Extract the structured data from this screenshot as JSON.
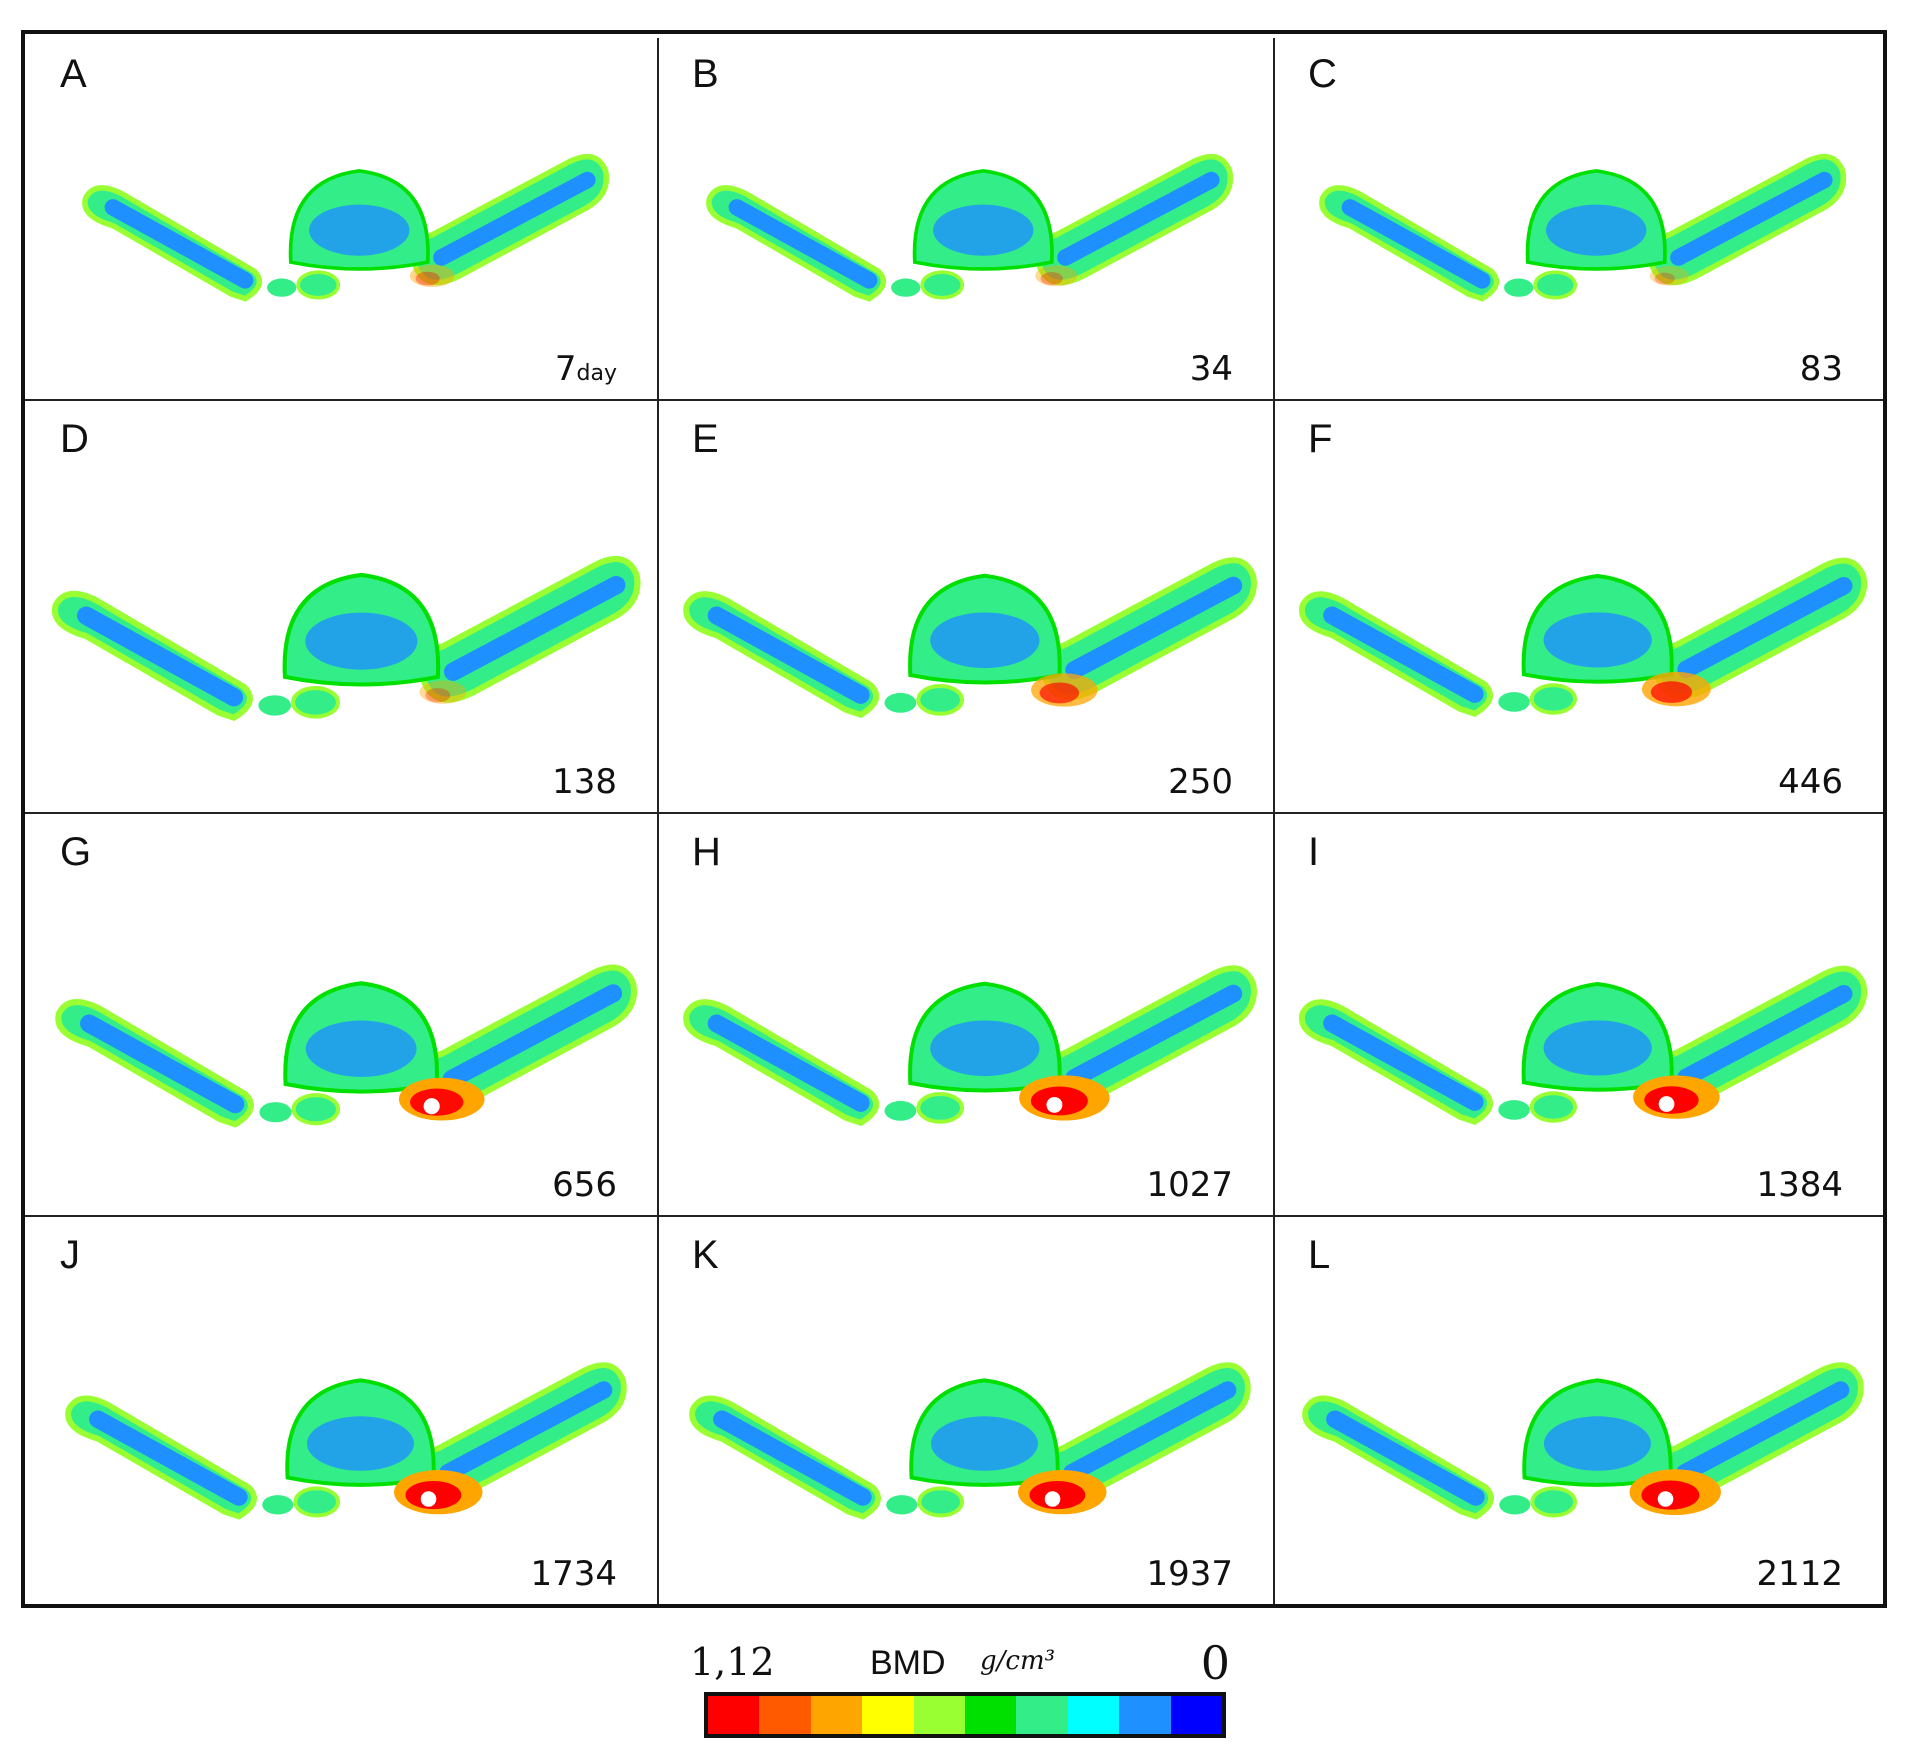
{
  "panels": [
    {
      "letter": "A",
      "day": "7",
      "unit": "day"
    },
    {
      "letter": "B",
      "day": "34",
      "unit": ""
    },
    {
      "letter": "C",
      "day": "83",
      "unit": ""
    },
    {
      "letter": "D",
      "day": "138",
      "unit": ""
    },
    {
      "letter": "E",
      "day": "250",
      "unit": ""
    },
    {
      "letter": "F",
      "day": "446",
      "unit": ""
    },
    {
      "letter": "G",
      "day": "656",
      "unit": ""
    },
    {
      "letter": "H",
      "day": "1027",
      "unit": ""
    },
    {
      "letter": "I",
      "day": "1384",
      "unit": ""
    },
    {
      "letter": "J",
      "day": "1734",
      "unit": ""
    },
    {
      "letter": "K",
      "day": "1937",
      "unit": ""
    },
    {
      "letter": "L",
      "day": "2112",
      "unit": ""
    }
  ],
  "hotspot_level": [
    0.15,
    0.1,
    0.05,
    0.1,
    0.45,
    0.5,
    0.75,
    0.85,
    0.8,
    0.85,
    0.85,
    0.9
  ],
  "colorbar": {
    "max_label": "1,12",
    "title": "BMD",
    "unit": "g/cm³",
    "min_label": "0",
    "colors": [
      "#ff0000",
      "#ff5a00",
      "#ffa500",
      "#ffff00",
      "#99ff33",
      "#00e000",
      "#33ee88",
      "#00ffff",
      "#1e90ff",
      "#0000ff"
    ]
  }
}
